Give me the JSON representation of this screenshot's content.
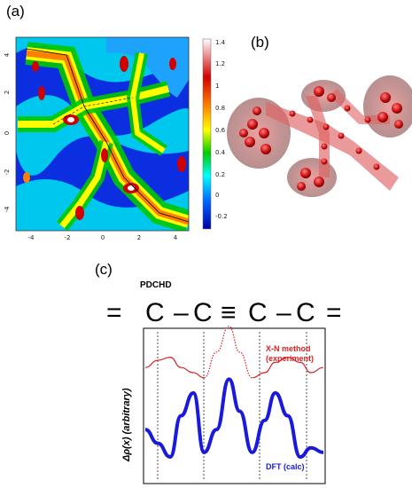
{
  "labels": {
    "a": "(a)",
    "b": "(b)",
    "c": "(c)"
  },
  "panel_a": {
    "x_ticks": [
      "-4",
      "-2",
      "0",
      "2",
      "4"
    ],
    "y_ticks": [
      "4",
      "2",
      "0",
      "-2",
      "-4"
    ],
    "colorbar_ticks": [
      "1.4",
      "1.2",
      "1",
      "0.8",
      "0.6",
      "0.4",
      "0.2",
      "0",
      "-0.2"
    ],
    "colorbar_colors": [
      "#ffffff",
      "#d10000",
      "#ff7f00",
      "#ffff00",
      "#00c800",
      "#00ffff",
      "#0060ff",
      "#0000a0"
    ]
  },
  "panel_c": {
    "molecule": "PDCHD",
    "chain_symbols": [
      "=",
      "C",
      "–",
      "C",
      "≡",
      "C",
      "–",
      "C",
      "="
    ],
    "y_label": "Δρ(x) (arbitrary)",
    "red_label_line1": "X-N method",
    "red_label_line2": "(experiment)",
    "blue_label": "DFT (calc)",
    "colors": {
      "red": "#dd2222",
      "blue": "#1a1adc"
    }
  },
  "chart_data": {
    "type": "line",
    "title": "",
    "ylabel": "Δρ(x) (arbitrary)",
    "xlabel": "",
    "series": [
      {
        "name": "X-N method (experiment)",
        "x": [
          0,
          0.07,
          0.14,
          0.2,
          0.27,
          0.33,
          0.4,
          0.47,
          0.53,
          0.6,
          0.67,
          0.73,
          0.8,
          0.87,
          0.93,
          1.0
        ],
        "values": [
          0.55,
          0.62,
          0.65,
          0.55,
          0.5,
          0.45,
          0.7,
          0.95,
          0.7,
          0.45,
          0.5,
          0.6,
          0.65,
          0.6,
          0.5,
          0.55
        ]
      },
      {
        "name": "DFT (calc)",
        "x": [
          0,
          0.07,
          0.14,
          0.2,
          0.27,
          0.33,
          0.4,
          0.47,
          0.53,
          0.6,
          0.67,
          0.73,
          0.8,
          0.87,
          0.93,
          1.0
        ],
        "values": [
          0.3,
          0.15,
          0.0,
          0.45,
          0.7,
          0.05,
          0.3,
          0.85,
          0.5,
          0.05,
          0.4,
          0.7,
          0.45,
          0.0,
          0.1,
          0.05
        ]
      }
    ]
  }
}
